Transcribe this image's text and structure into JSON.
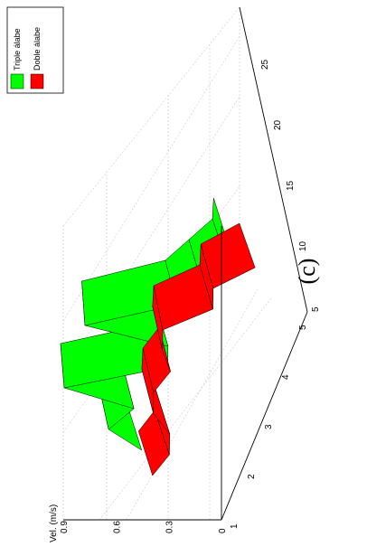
{
  "caption": "(c)",
  "chart_data": {
    "type": "area",
    "title": "",
    "ylabel": "Vel. (m/s)",
    "xlabel": "",
    "zlabel": "",
    "y_ticks": [
      "0",
      "0.3",
      "0.6",
      "0.9"
    ],
    "x_ticks": [
      "1",
      "2",
      "3",
      "4",
      "5"
    ],
    "z_ticks": [
      "5",
      "10",
      "15",
      "20",
      "25"
    ],
    "legend": {
      "position": "top-right",
      "entries": [
        "Triple álabe",
        "Doble álabe"
      ]
    },
    "grid": true,
    "series": [
      {
        "name": "Triple álabe",
        "color": "#00ff00",
        "profile": [
          0.3,
          0.55,
          0.45,
          0.92,
          0.35,
          0.4,
          0.95,
          0.45,
          0.35,
          0.25,
          0.3
        ]
      },
      {
        "name": "Doble álabe",
        "color": "#ff0000",
        "profile": [
          0.3,
          0.25,
          0.3,
          0.45,
          0.5,
          0.45,
          0.55,
          0.6,
          0.35,
          0.4,
          0.2
        ]
      }
    ]
  }
}
